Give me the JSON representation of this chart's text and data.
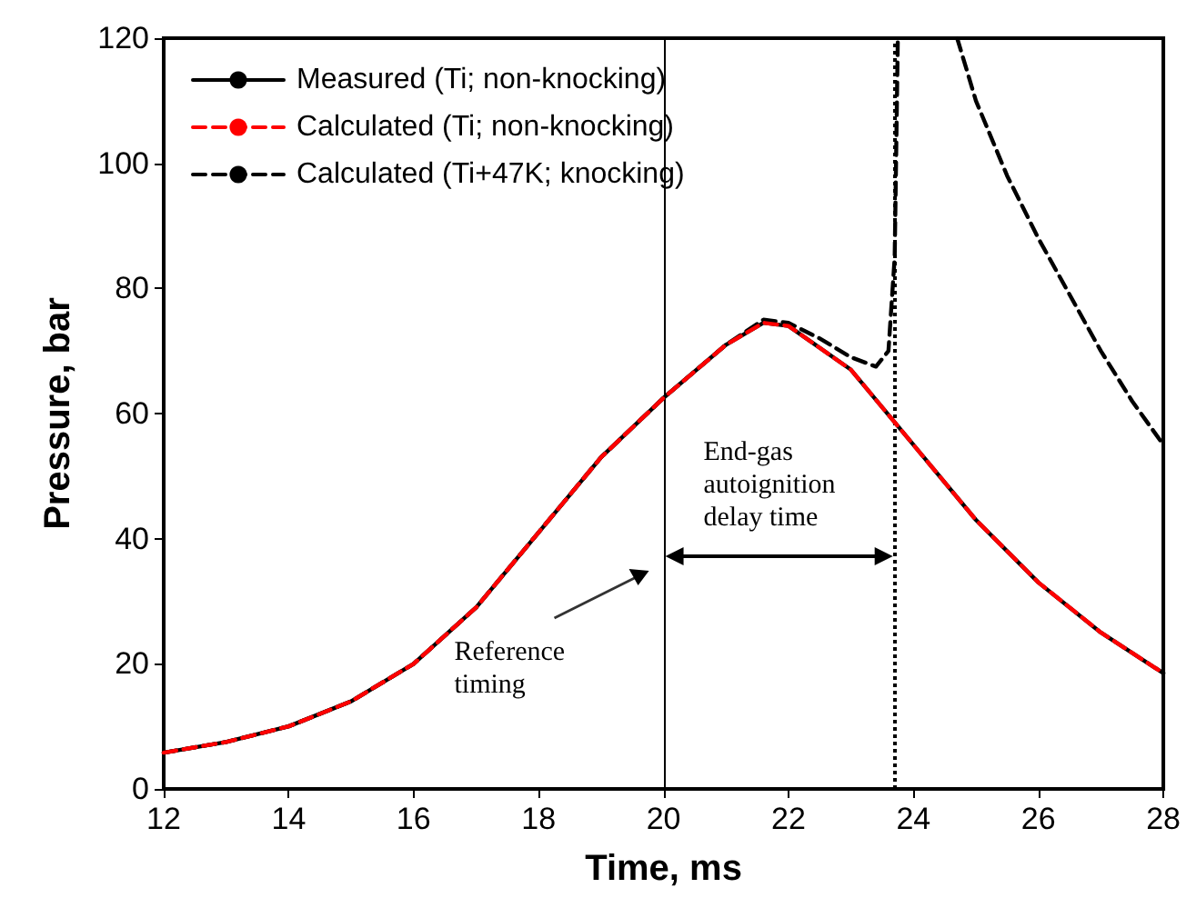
{
  "chart_data": {
    "type": "line",
    "xlabel": "Time, ms",
    "ylabel": "Pressure, bar",
    "xlim": [
      12,
      28
    ],
    "xticks": [
      12,
      14,
      16,
      18,
      20,
      22,
      24,
      26,
      28
    ],
    "ylim": [
      0,
      120
    ],
    "yticks": [
      0,
      20,
      40,
      60,
      80,
      100,
      120
    ],
    "grid": false,
    "legend": "top left",
    "marker": "none",
    "series": [
      {
        "name": "Measured (Ti; non-knocking)",
        "color": "#000000",
        "line_style": "solid",
        "x": [
          12,
          13,
          14,
          15,
          16,
          17,
          18,
          19,
          20,
          21,
          21.6,
          22,
          23,
          24,
          25,
          26,
          27,
          28
        ],
        "values": [
          5.8,
          7.5,
          10,
          14,
          20,
          29,
          41,
          53,
          62.5,
          71,
          74.5,
          74,
          67,
          55,
          43,
          33,
          25,
          18.5
        ]
      },
      {
        "name": "Calculated (Ti; non-knocking)",
        "color": "#ff0000",
        "line_style": "dashed",
        "x": [
          12,
          13,
          14,
          15,
          16,
          17,
          18,
          19,
          20,
          21,
          21.6,
          22,
          23,
          24,
          25,
          26,
          27,
          28
        ],
        "values": [
          5.8,
          7.5,
          10,
          14,
          20,
          29,
          41,
          53,
          62.5,
          71,
          74.5,
          74,
          67,
          55,
          43,
          33,
          25,
          18.5
        ]
      },
      {
        "name": "Calculated (Ti+47K; knocking)",
        "color": "#000000",
        "line_style": "dashed",
        "x": [
          12,
          13,
          14,
          15,
          16,
          17,
          18,
          19,
          20,
          21,
          21.6,
          22,
          22.5,
          23,
          23.4,
          23.6,
          23.7,
          23.75,
          24.2,
          24.7,
          25,
          25.5,
          26,
          26.5,
          27,
          27.5,
          28
        ],
        "values": [
          5.8,
          7.5,
          10,
          14,
          20,
          29,
          41,
          53,
          62.5,
          71,
          75,
          74.5,
          72,
          69,
          67.5,
          70,
          85,
          120,
          null,
          120,
          110,
          98,
          88,
          79,
          70,
          62,
          55
        ]
      }
    ],
    "ref_lines": [
      {
        "axis": "x",
        "value": 20,
        "line_style": "solid"
      },
      {
        "axis": "x",
        "value": 23.7,
        "line_style": "dotted"
      }
    ],
    "annotations": [
      "Reference timing",
      "End-gas autoignition delay time"
    ]
  }
}
